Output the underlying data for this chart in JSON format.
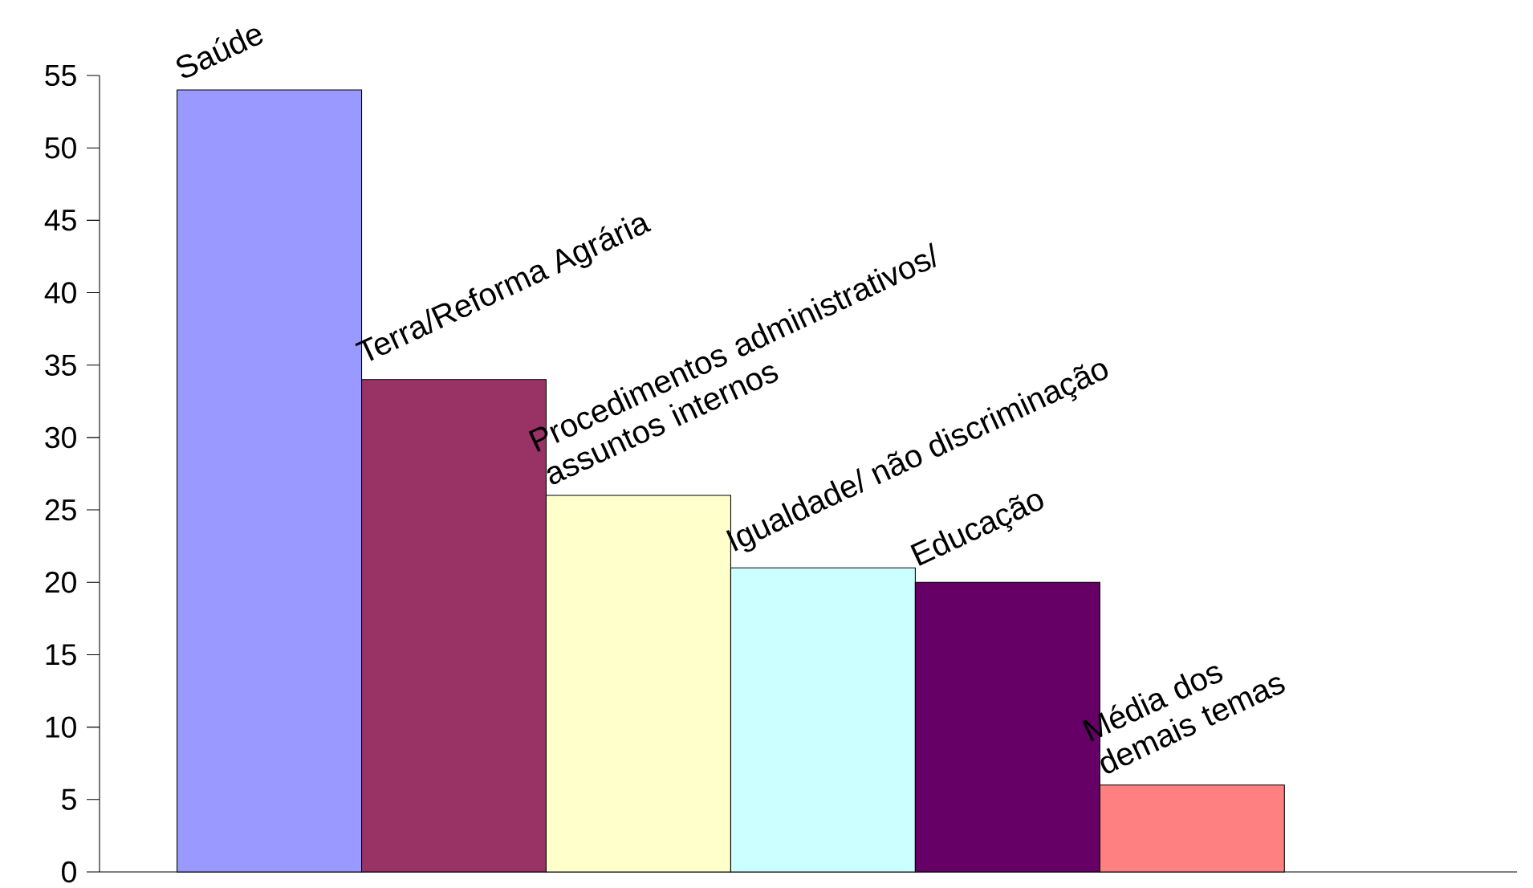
{
  "chart_data": {
    "type": "bar",
    "categories": [
      null,
      null,
      null,
      null,
      null,
      null
    ],
    "value_labels": [
      "Saúde",
      "Terra/Reforma Agrária",
      "Procedimentos administrativos/ assuntos internos",
      "Igualdade/ não discriminação",
      "Educação",
      "Média dos demais temas"
    ],
    "values": [
      54,
      34,
      26,
      21,
      20,
      6
    ],
    "colors": [
      "#9999ff",
      "#993366",
      "#ffffcc",
      "#ccffff",
      "#660066",
      "#ff8080"
    ],
    "ylim": [
      0,
      55
    ],
    "yticks": [
      0,
      5,
      10,
      15,
      20,
      25,
      30,
      35,
      40,
      45,
      50,
      55
    ],
    "grid": false
  }
}
